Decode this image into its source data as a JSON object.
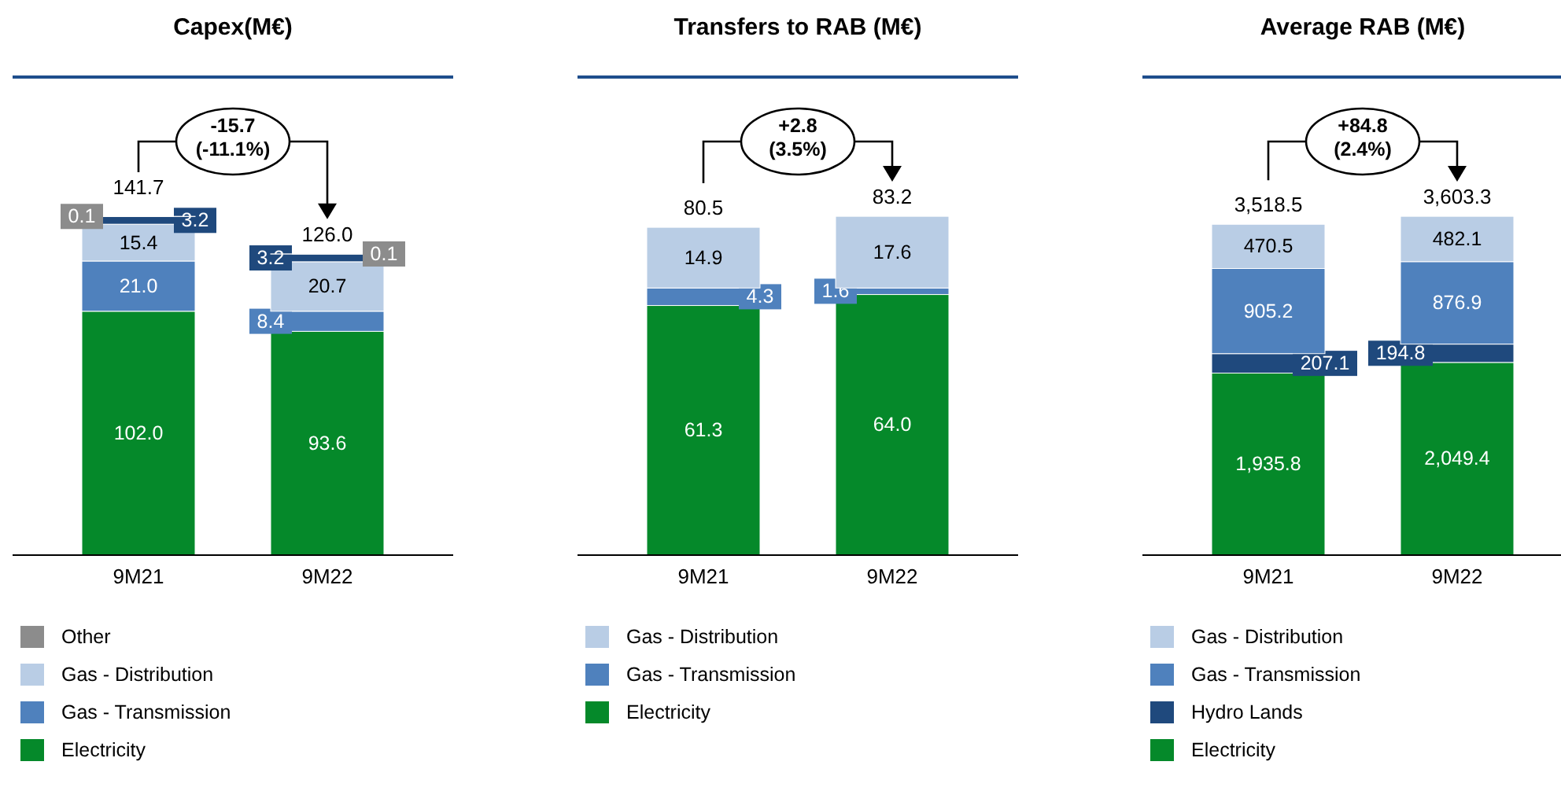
{
  "chart_data": [
    {
      "type": "bar",
      "title": "Capex(M€)",
      "stacked": true,
      "categories": [
        "9M21",
        "9M22"
      ],
      "legend": "bottom",
      "totals": [
        "141.7",
        "126.0"
      ],
      "annotations": [
        "-15.7\n(-11.1%)"
      ],
      "series": [
        {
          "name": "Electricity",
          "color": "#05892a",
          "values": [
            102.0,
            93.6
          ],
          "value_labels": [
            "102.0",
            "93.6"
          ]
        },
        {
          "name": "Gas - Transmission",
          "color": "#4f81bd",
          "values": [
            21.0,
            8.4
          ],
          "value_labels": [
            "21.0",
            "8.4"
          ]
        },
        {
          "name": "Gas - Distribution",
          "color": "#b9cde5",
          "values": [
            15.4,
            20.7
          ],
          "value_labels": [
            "15.4",
            "20.7"
          ]
        },
        {
          "color": "#1f497d",
          "values": [
            3.2,
            3.2
          ],
          "value_labels": [
            "3.2",
            "3.2"
          ]
        },
        {
          "name": "Other",
          "color": "#8c8c8c",
          "values": [
            0.1,
            0.1
          ],
          "value_labels": [
            "0.1",
            "0.1"
          ]
        }
      ]
    },
    {
      "type": "bar",
      "title": "Transfers to RAB (M€)",
      "stacked": true,
      "categories": [
        "9M21",
        "9M22"
      ],
      "legend": "bottom",
      "totals": [
        "80.5",
        "83.2"
      ],
      "annotations": [
        "+2.8\n(3.5%)"
      ],
      "series": [
        {
          "name": "Electricity",
          "color": "#05892a",
          "values": [
            61.3,
            64.0
          ],
          "value_labels": [
            "61.3",
            "64.0"
          ]
        },
        {
          "name": "Gas - Transmission",
          "color": "#4f81bd",
          "values": [
            4.3,
            1.6
          ],
          "value_labels": [
            "4.3",
            "1.6"
          ]
        },
        {
          "name": "Gas - Distribution",
          "color": "#b9cde5",
          "values": [
            14.9,
            17.6
          ],
          "value_labels": [
            "14.9",
            "17.6"
          ]
        }
      ]
    },
    {
      "type": "bar",
      "title": "Average RAB (M€)",
      "stacked": true,
      "categories": [
        "9M21",
        "9M22"
      ],
      "legend": "bottom",
      "totals": [
        "3,518.5",
        "3,603.3"
      ],
      "annotations": [
        "+84.8\n(2.4%)"
      ],
      "series": [
        {
          "name": "Electricity",
          "color": "#05892a",
          "values": [
            1935.8,
            2049.4
          ],
          "value_labels": [
            "1,935.8",
            "2,049.4"
          ]
        },
        {
          "name": "Hydro Lands",
          "color": "#1f497d",
          "values": [
            207.1,
            194.8
          ],
          "value_labels": [
            "207.1",
            "194.8"
          ]
        },
        {
          "name": "Gas - Transmission",
          "color": "#4f81bd",
          "values": [
            905.2,
            876.9
          ],
          "value_labels": [
            "905.2",
            "876.9"
          ]
        },
        {
          "name": "Gas - Distribution",
          "color": "#b9cde5",
          "values": [
            470.5,
            482.1
          ],
          "value_labels": [
            "470.5",
            "482.1"
          ]
        }
      ]
    }
  ]
}
